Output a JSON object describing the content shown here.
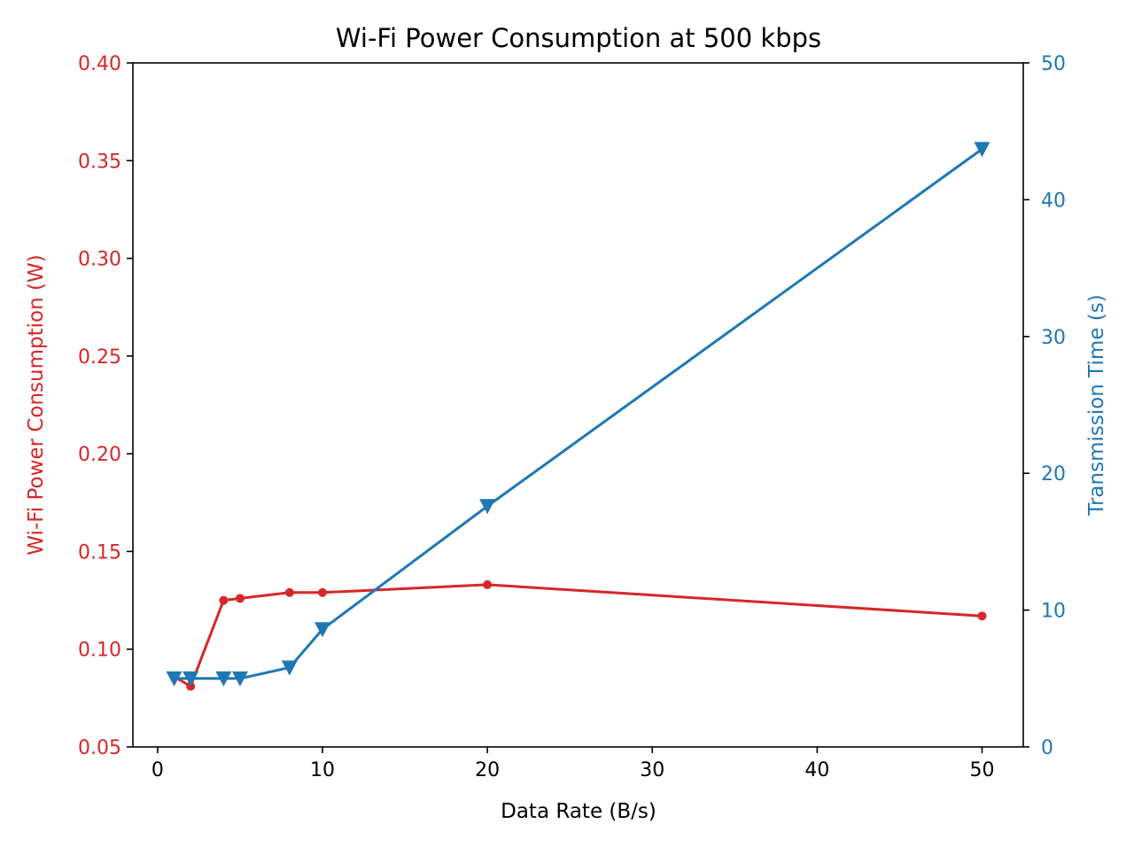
{
  "chart_data": {
    "type": "line",
    "title": "Wi-Fi Power Consumption at 500 kbps",
    "xlabel": "Data Rate (B/s)",
    "ylabel_left": "Wi-Fi Power Consumption (W)",
    "ylabel_right": "Transmission Time (s)",
    "xlim": [
      -1.5,
      52.5
    ],
    "ylim_left": [
      0.05,
      0.4
    ],
    "ylim_right": [
      0,
      50
    ],
    "x_ticks": [
      0,
      10,
      20,
      30,
      40,
      50
    ],
    "y_ticks_left": [
      0.05,
      0.1,
      0.15,
      0.2,
      0.25,
      0.3,
      0.35,
      0.4
    ],
    "y_ticks_right": [
      0,
      10,
      20,
      30,
      40,
      50
    ],
    "grid": false,
    "series": [
      {
        "axis": "left",
        "color": "#d62728",
        "marker": "circle",
        "x": [
          1,
          2,
          4,
          5,
          8,
          10,
          20,
          50
        ],
        "values": [
          0.086,
          0.081,
          0.125,
          0.126,
          0.129,
          0.129,
          0.133,
          0.117
        ]
      },
      {
        "axis": "right",
        "color": "#1f77b4",
        "marker": "triangle-down",
        "x": [
          1,
          2,
          4,
          5,
          8,
          10,
          20,
          50
        ],
        "values": [
          5.0,
          5.0,
          5.0,
          5.0,
          5.8,
          8.6,
          17.6,
          43.7
        ]
      }
    ]
  }
}
